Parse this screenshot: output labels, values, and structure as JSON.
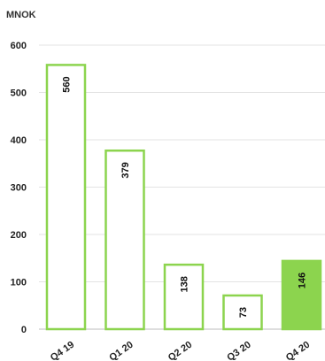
{
  "chart_data": {
    "type": "bar",
    "unit_label": "MNOK",
    "categories": [
      "Q4 19",
      "Q1 20",
      "Q2 20",
      "Q3 20",
      "Q4 20"
    ],
    "values": [
      560,
      379,
      138,
      73,
      146
    ],
    "data_labels": [
      "560",
      "379",
      "138",
      "73",
      "146"
    ],
    "filled": [
      false,
      false,
      false,
      false,
      true
    ],
    "ylim": [
      0,
      600
    ],
    "yticks": [
      0,
      100,
      200,
      300,
      400,
      500,
      600
    ],
    "grid": true,
    "colors": {
      "bar_outline": "#8cd44e",
      "bar_highlight_fill": "#8cd44e",
      "bar_fill": "#ffffff"
    }
  }
}
